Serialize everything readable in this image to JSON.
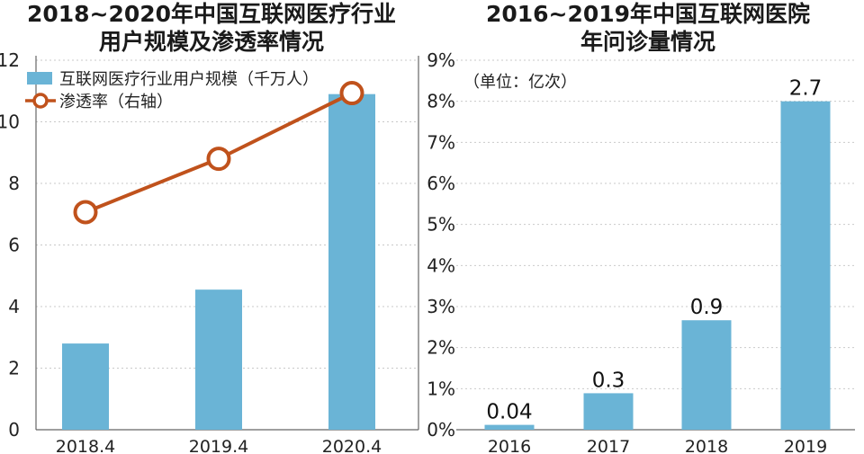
{
  "chart_data": [
    {
      "type": "bar",
      "title": "2018~2020年中国互联网医疗行业\n用户规模及渗透率情况",
      "categories": [
        "2018.4",
        "2019.4",
        "2020.4"
      ],
      "ylim": [
        0,
        12
      ],
      "y_ticks": [
        "0",
        "2",
        "4",
        "6",
        "8",
        "10",
        "12"
      ],
      "y2lim": [
        0,
        9
      ],
      "y2_ticks": [
        "0%",
        "1%",
        "2%",
        "3%",
        "4%",
        "5%",
        "6%",
        "7%",
        "8%",
        "9%"
      ],
      "series": [
        {
          "name": "互联网医疗行业用户规模（千万人）",
          "type": "bar",
          "values": [
            2.8,
            4.55,
            10.9
          ],
          "color": "#6ab4d6"
        },
        {
          "name": "渗透率（右轴）",
          "type": "line",
          "axis": "right",
          "values": [
            5.3,
            6.6,
            8.2
          ],
          "color": "#c0521c"
        }
      ],
      "grid": true,
      "legend_position": "top-left"
    },
    {
      "type": "bar",
      "title": "2016~2019年中国互联网医院\n年问诊量情况",
      "unit": "（单位：亿次）",
      "categories": [
        "2016",
        "2017",
        "2018",
        "2019"
      ],
      "values": [
        0.04,
        0.3,
        0.9,
        2.7
      ],
      "data_labels": [
        "0.04",
        "0.3",
        "0.9",
        "2.7"
      ],
      "color": "#6ab4d6",
      "ylim": [
        0,
        3.0375
      ],
      "grid": true
    }
  ]
}
